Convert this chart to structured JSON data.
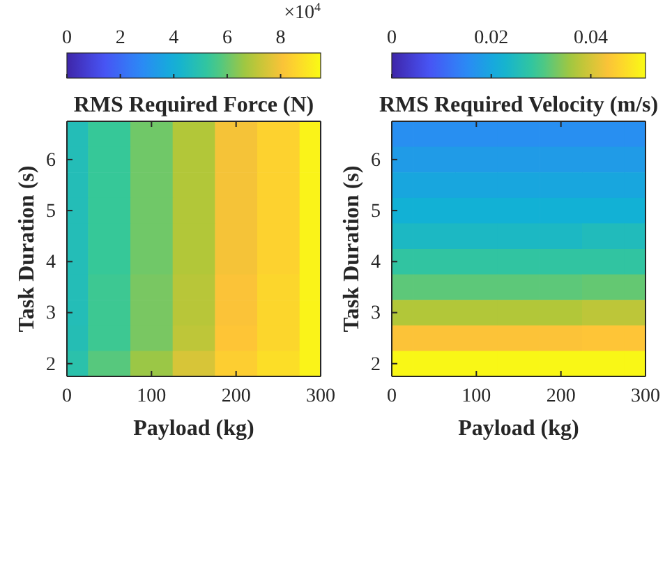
{
  "chart_data": [
    {
      "type": "heatmap",
      "title": "RMS Required Force (N)",
      "xlabel": "Payload (kg)",
      "ylabel": "Task Duration (s)",
      "x": [
        0,
        50,
        100,
        150,
        200,
        250,
        300
      ],
      "y_categories": [
        null,
        "6",
        null,
        "5",
        null,
        "4",
        null,
        "3",
        null,
        "2"
      ],
      "cells": [
        [
          4.75,
          5.4,
          6.1,
          6.9,
          8.0,
          8.5,
          9.3
        ],
        [
          4.75,
          5.4,
          6.1,
          6.9,
          8.0,
          8.5,
          9.3
        ],
        [
          4.75,
          5.4,
          6.1,
          6.9,
          8.0,
          8.5,
          9.3
        ],
        [
          4.75,
          5.4,
          6.1,
          6.9,
          8.0,
          8.5,
          9.3
        ],
        [
          4.75,
          5.4,
          6.1,
          6.9,
          8.0,
          8.5,
          9.3
        ],
        [
          4.75,
          5.4,
          6.1,
          6.9,
          8.0,
          8.5,
          9.3
        ],
        [
          4.75,
          5.5,
          6.2,
          7.0,
          8.1,
          8.6,
          9.3
        ],
        [
          4.75,
          5.5,
          6.2,
          7.0,
          8.1,
          8.6,
          9.3
        ],
        [
          4.8,
          5.5,
          6.2,
          7.1,
          8.2,
          8.6,
          9.3
        ],
        [
          5.0,
          5.8,
          6.6,
          7.5,
          8.4,
          8.8,
          9.3
        ]
      ],
      "clim": [
        0,
        9.5
      ],
      "cticks": [
        0,
        2,
        4,
        6,
        8
      ],
      "annotations": [
        "×10$^{4}$"
      ],
      "xlim": [
        0,
        300
      ],
      "xticks": [
        0,
        100,
        200,
        300
      ]
    },
    {
      "type": "heatmap",
      "title": "RMS Required Velocity (m/s)",
      "xlabel": "Payload (kg)",
      "ylabel": "Task Duration (s)",
      "x": [
        0,
        50,
        100,
        150,
        200,
        250,
        300
      ],
      "y_categories": [
        null,
        "6",
        null,
        "5",
        null,
        "4",
        null,
        "3",
        null,
        "2"
      ],
      "cells": [
        [
          0.016,
          0.016,
          0.016,
          0.016,
          0.016,
          0.016,
          0.016
        ],
        [
          0.018,
          0.018,
          0.018,
          0.018,
          0.018,
          0.018,
          0.018
        ],
        [
          0.02,
          0.02,
          0.02,
          0.02,
          0.02,
          0.02,
          0.02
        ],
        [
          0.022,
          0.022,
          0.022,
          0.022,
          0.022,
          0.022,
          0.022
        ],
        [
          0.024,
          0.024,
          0.024,
          0.024,
          0.024,
          0.025,
          0.025
        ],
        [
          0.028,
          0.028,
          0.028,
          0.028,
          0.028,
          0.028,
          0.028
        ],
        [
          0.0315,
          0.0315,
          0.0315,
          0.0315,
          0.0315,
          0.032,
          0.032
        ],
        [
          0.037,
          0.037,
          0.037,
          0.037,
          0.037,
          0.038,
          0.038
        ],
        [
          0.0435,
          0.0435,
          0.0435,
          0.0435,
          0.0435,
          0.044,
          0.044
        ],
        [
          0.0505,
          0.0505,
          0.0505,
          0.0505,
          0.0505,
          0.0505,
          0.0505
        ]
      ],
      "clim": [
        0,
        0.051
      ],
      "cticks": [
        0,
        0.02,
        0.04
      ],
      "xlim": [
        0,
        300
      ],
      "xticks": [
        0,
        100,
        200,
        300
      ]
    }
  ]
}
